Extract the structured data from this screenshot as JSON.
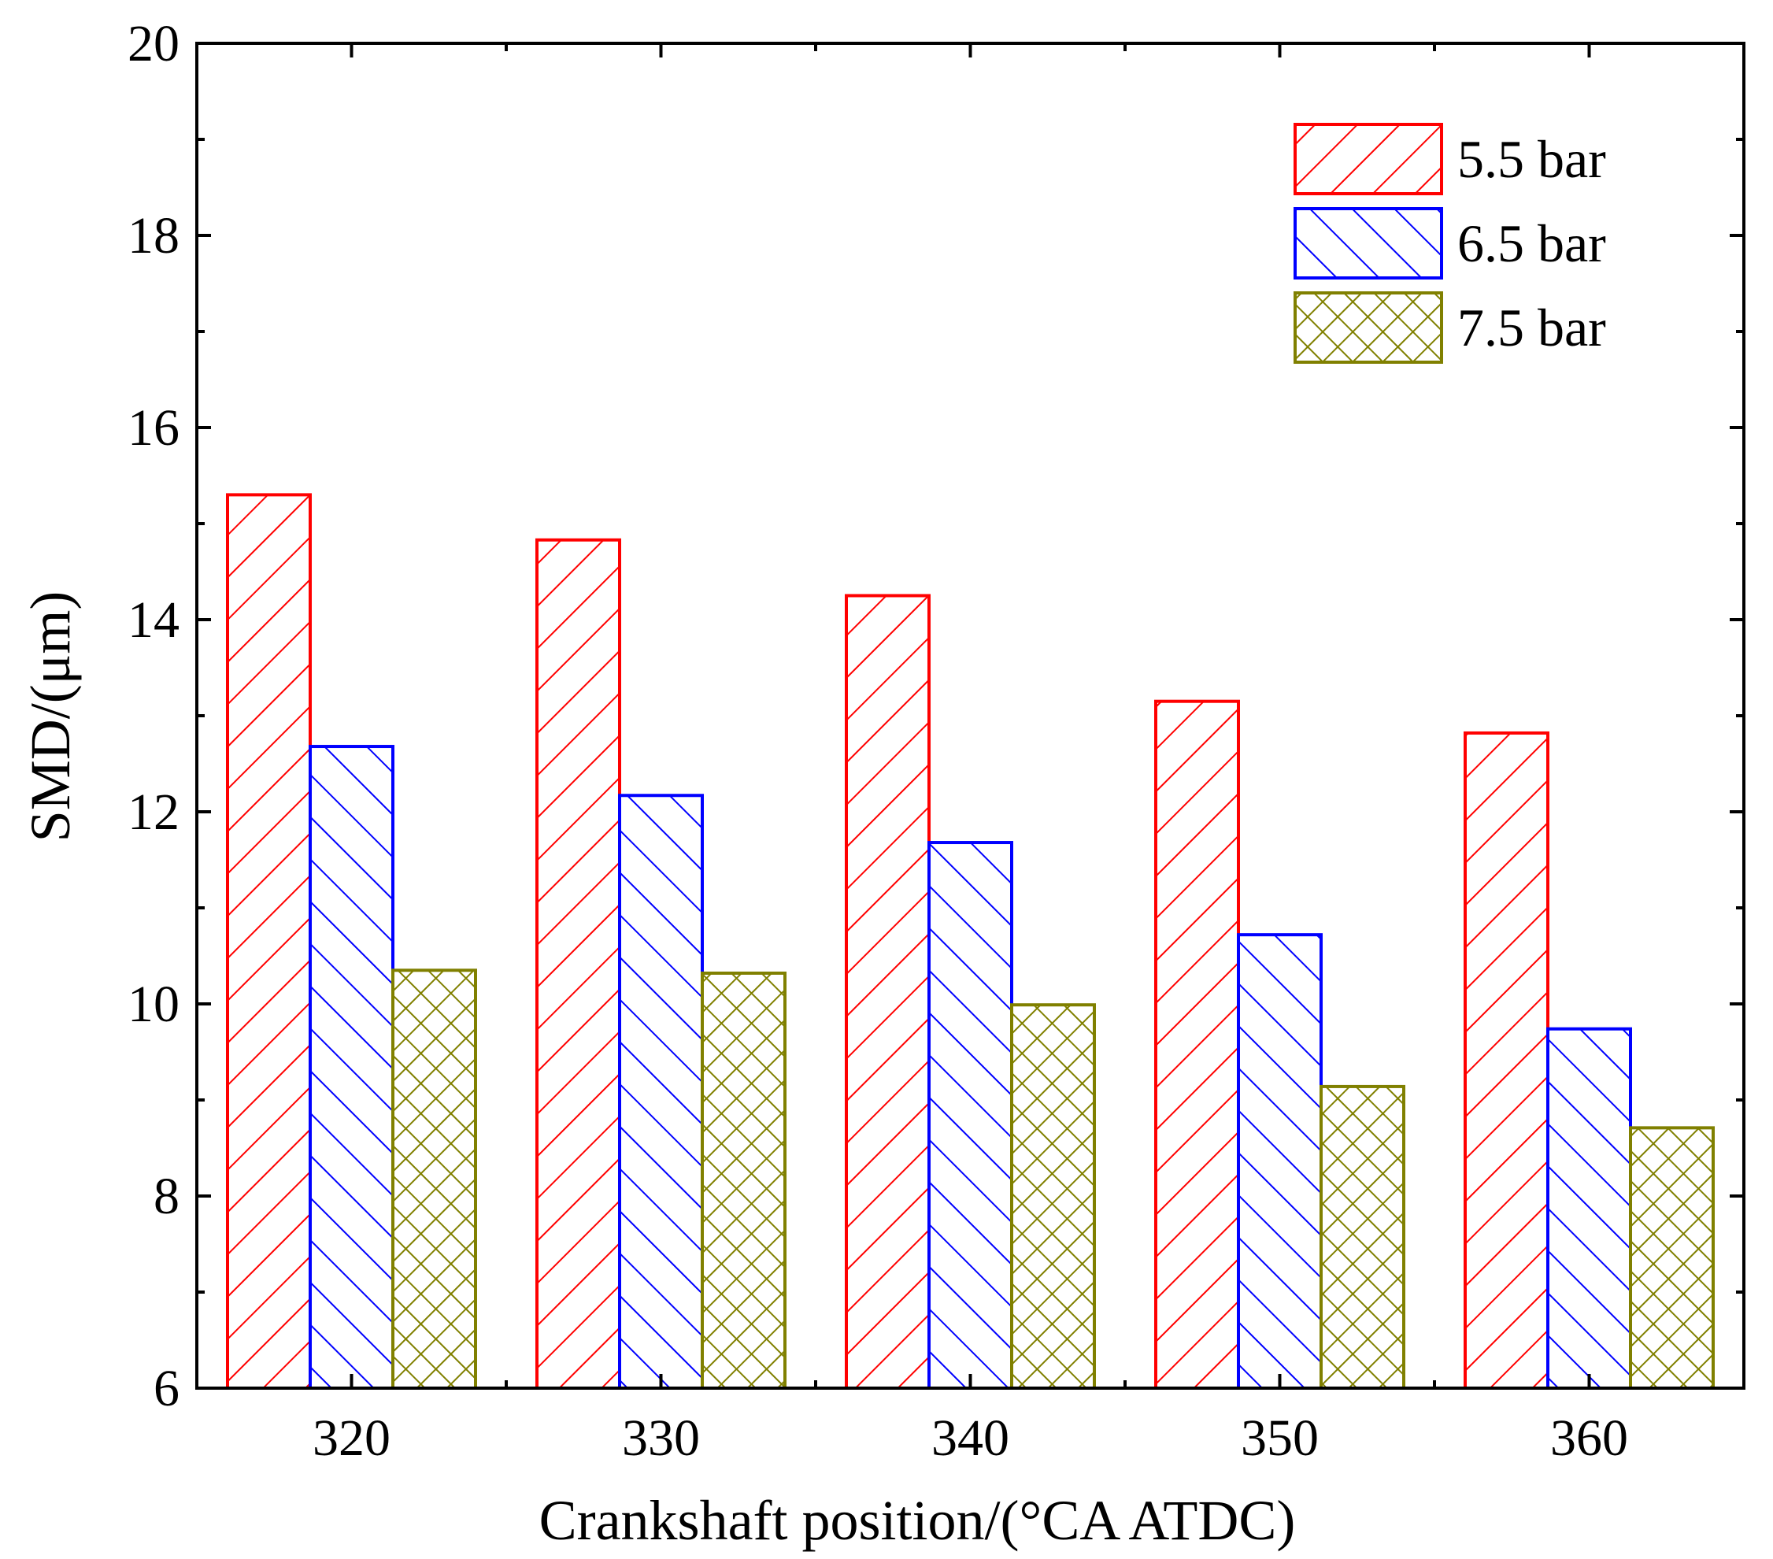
{
  "chart_data": {
    "type": "bar",
    "title": "",
    "xlabel": "Crankshaft position/(°CA ATDC)",
    "ylabel": "SMD/(μm)",
    "ylim": [
      6,
      20
    ],
    "yticks": [
      6,
      8,
      10,
      12,
      14,
      16,
      18,
      20
    ],
    "categories": [
      "320",
      "330",
      "340",
      "350",
      "360"
    ],
    "grid": false,
    "legend_position": "top-right",
    "series": [
      {
        "name": "5.5 bar",
        "color": "#ff0000",
        "pattern": "forward-diagonal-hatch",
        "values": [
          15.3,
          14.83,
          14.25,
          13.15,
          12.82
        ]
      },
      {
        "name": "6.5 bar",
        "color": "#0000ff",
        "pattern": "backward-diagonal-hatch",
        "values": [
          12.68,
          12.17,
          11.68,
          10.72,
          9.74
        ]
      },
      {
        "name": "7.5 bar",
        "color": "#808000",
        "pattern": "cross-hatch",
        "values": [
          10.35,
          10.32,
          9.99,
          9.14,
          8.71
        ]
      }
    ]
  }
}
